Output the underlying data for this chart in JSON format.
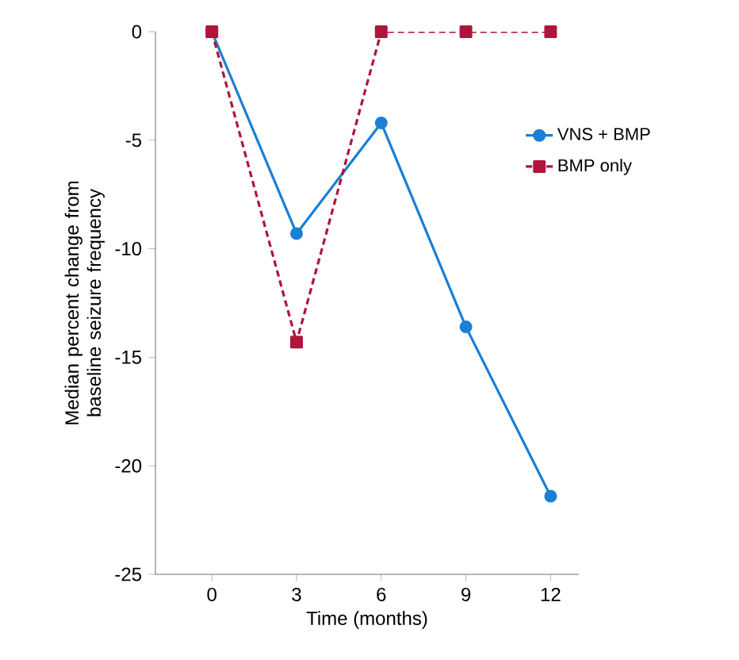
{
  "chart_data": {
    "type": "line",
    "xlabel": "Time (months)",
    "ylabel": "Median percent change from baseline seizure frequency",
    "x": [
      0,
      3,
      6,
      9,
      12
    ],
    "xlim": [
      -2,
      13
    ],
    "xticks": [
      0,
      3,
      6,
      9,
      12
    ],
    "ylim": [
      -25,
      0
    ],
    "yticks": [
      -25,
      -20,
      -15,
      -10,
      -5,
      0
    ],
    "series": [
      {
        "name": "VNS + BMP",
        "color": "#1b7fd4",
        "values": [
          0,
          -9.3,
          -4.2,
          -13.6,
          -21.4
        ],
        "marker": "circle",
        "line_style": "solid"
      },
      {
        "name": "BMP only",
        "color": "#b0143c",
        "values": [
          0,
          -14.3,
          0,
          0,
          0
        ],
        "marker": "square",
        "line_style": "dashed"
      }
    ],
    "grid": false,
    "legend": "right"
  }
}
